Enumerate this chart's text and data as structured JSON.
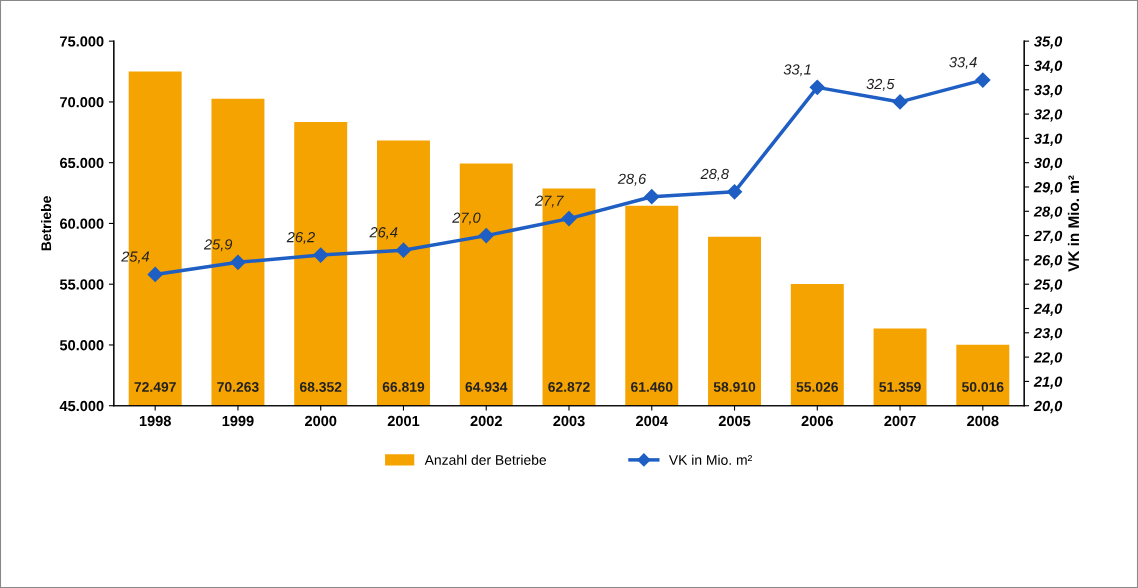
{
  "chart_data": {
    "type": "bar",
    "categories": [
      "1998",
      "1999",
      "2000",
      "2001",
      "2002",
      "2003",
      "2004",
      "2005",
      "2006",
      "2007",
      "2008"
    ],
    "ylabel": "Betriebe",
    "y2label": "VK in Mio. m²",
    "series": [
      {
        "name": "Anzahl der Betriebe",
        "color": "#f5a300",
        "values": [
          72497,
          70263,
          68352,
          66819,
          64934,
          62872,
          61460,
          58910,
          55026,
          51359,
          50016
        ],
        "value_labels": [
          "72.497",
          "70.263",
          "68.352",
          "66.819",
          "64.934",
          "62.872",
          "61.460",
          "58.910",
          "55.026",
          "51.359",
          "50.016"
        ]
      },
      {
        "name": "VK in Mio. m²",
        "type": "line",
        "axis": "y2",
        "color": "#1f5fc4",
        "marker": "diamond",
        "values": [
          25.4,
          25.9,
          26.2,
          26.4,
          27.0,
          27.7,
          28.6,
          28.8,
          33.1,
          32.5,
          33.4
        ],
        "value_labels": [
          "25,4",
          "25,9",
          "26,2",
          "26,4",
          "27,0",
          "27,7",
          "28,6",
          "28,8",
          "33,1",
          "32,5",
          "33,4"
        ]
      }
    ],
    "ylim": [
      45000,
      75000
    ],
    "yticks": [
      {
        "value": 45000,
        "label": "45.000"
      },
      {
        "value": 50000,
        "label": "50.000"
      },
      {
        "value": 55000,
        "label": "55.000"
      },
      {
        "value": 60000,
        "label": "60.000"
      },
      {
        "value": 65000,
        "label": "65.000"
      },
      {
        "value": 70000,
        "label": "70.000"
      },
      {
        "value": 75000,
        "label": "75.000"
      }
    ],
    "y2lim": [
      20,
      35
    ],
    "y2ticks": [
      {
        "value": 20,
        "label": "20,0"
      },
      {
        "value": 21,
        "label": "21,0"
      },
      {
        "value": 22,
        "label": "22,0"
      },
      {
        "value": 23,
        "label": "23,0"
      },
      {
        "value": 24,
        "label": "24,0"
      },
      {
        "value": 25,
        "label": "25,0"
      },
      {
        "value": 26,
        "label": "26,0"
      },
      {
        "value": 27,
        "label": "27,0"
      },
      {
        "value": 28,
        "label": "28,0"
      },
      {
        "value": 29,
        "label": "29,0"
      },
      {
        "value": 30,
        "label": "30,0"
      },
      {
        "value": 31,
        "label": "31,0"
      },
      {
        "value": 32,
        "label": "32,0"
      },
      {
        "value": 33,
        "label": "33,0"
      },
      {
        "value": 34,
        "label": "34,0"
      },
      {
        "value": 35,
        "label": "35,0"
      }
    ],
    "grid": false,
    "legend": "bottom"
  }
}
